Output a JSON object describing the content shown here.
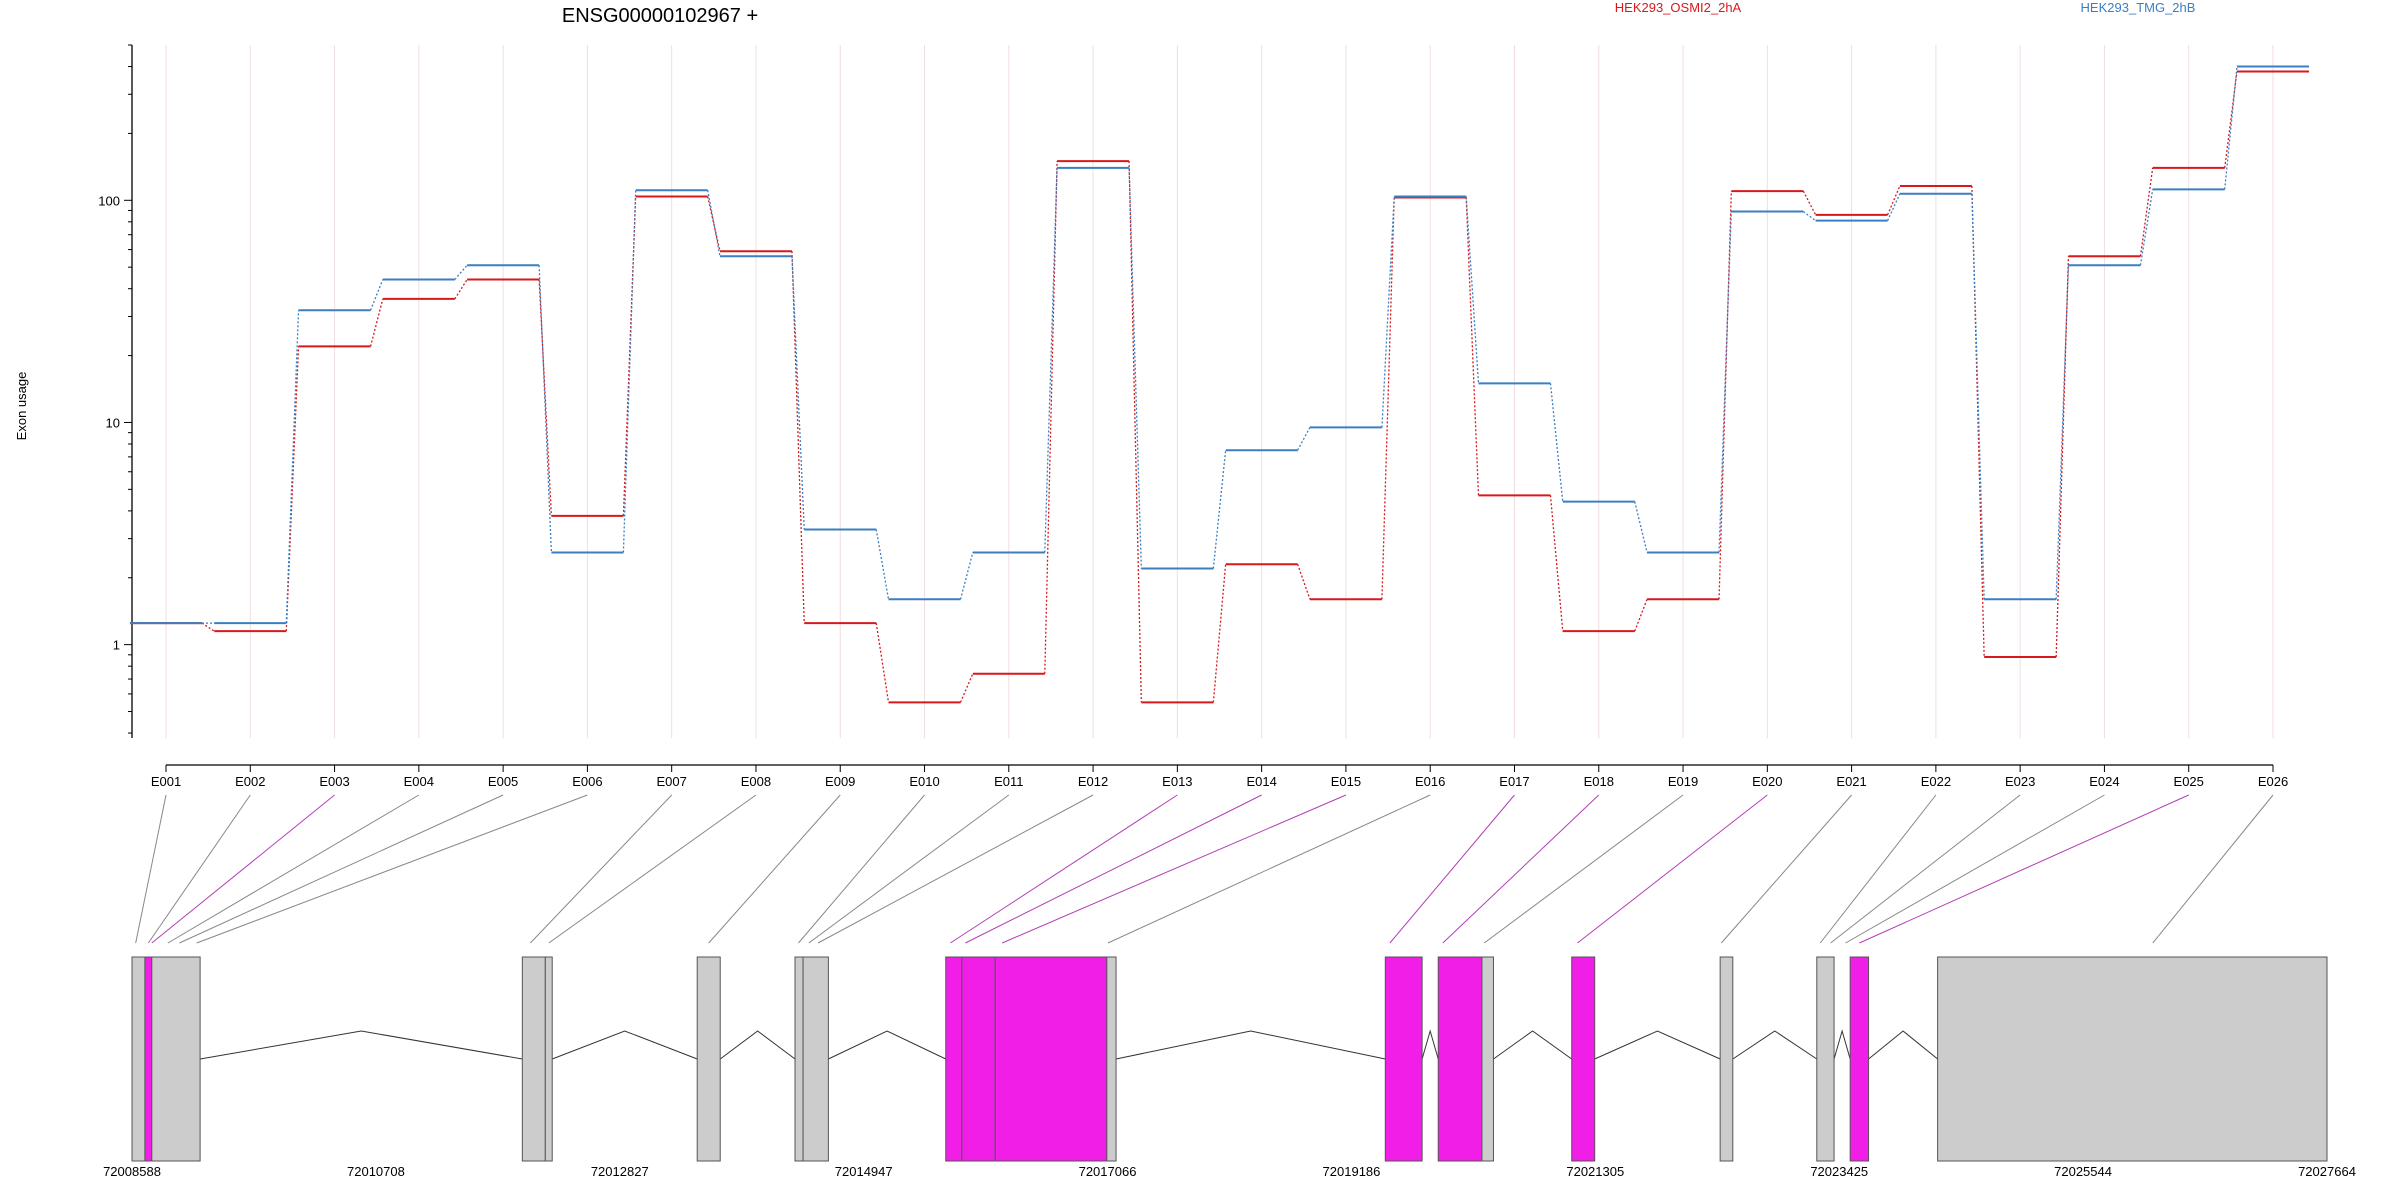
{
  "chart_data": {
    "type": "line",
    "title": "ENSG00000102967 +",
    "ylabel": "Exon usage",
    "y_scale": "log",
    "y_ticks": [
      1,
      10,
      100
    ],
    "y_tick_labels": [
      "1",
      "10",
      "100"
    ],
    "ylim": [
      0.38,
      500
    ],
    "categories": [
      "E001",
      "E002",
      "E003",
      "E004",
      "E005",
      "E006",
      "E007",
      "E008",
      "E009",
      "E010",
      "E011",
      "E012",
      "E013",
      "E014",
      "E015",
      "E016",
      "E017",
      "E018",
      "E019",
      "E020",
      "E021",
      "E022",
      "E023",
      "E024",
      "E025",
      "E026"
    ],
    "series": [
      {
        "name": "HEK293_OSMI2_2hA",
        "color": "#d7191c",
        "values": [
          1.25,
          1.15,
          22,
          36,
          44,
          3.8,
          104,
          59,
          1.25,
          0.55,
          0.74,
          150,
          0.55,
          2.3,
          1.6,
          103,
          4.7,
          1.15,
          1.6,
          110,
          86,
          116,
          0.88,
          56,
          140,
          380
        ]
      },
      {
        "name": "HEK293_TMG_2hB",
        "color": "#3a7fc1",
        "values": [
          1.25,
          1.25,
          32,
          44,
          51,
          2.6,
          111,
          56,
          3.3,
          1.6,
          2.6,
          140,
          2.2,
          7.5,
          9.5,
          104,
          15,
          4.4,
          2.6,
          89,
          81,
          107,
          1.6,
          51,
          112,
          400
        ]
      }
    ],
    "legend": "top"
  },
  "gene_model": {
    "coordinate_labels": [
      "72008588",
      "72010708",
      "72012827",
      "72014947",
      "72017066",
      "72019186",
      "72021305",
      "72023425",
      "72025544",
      "72027664"
    ],
    "exon_fill": "#cccccc",
    "significant_fill": "#f01ee6",
    "significant_line": "#b23fb5",
    "normal_line": "#888888"
  }
}
